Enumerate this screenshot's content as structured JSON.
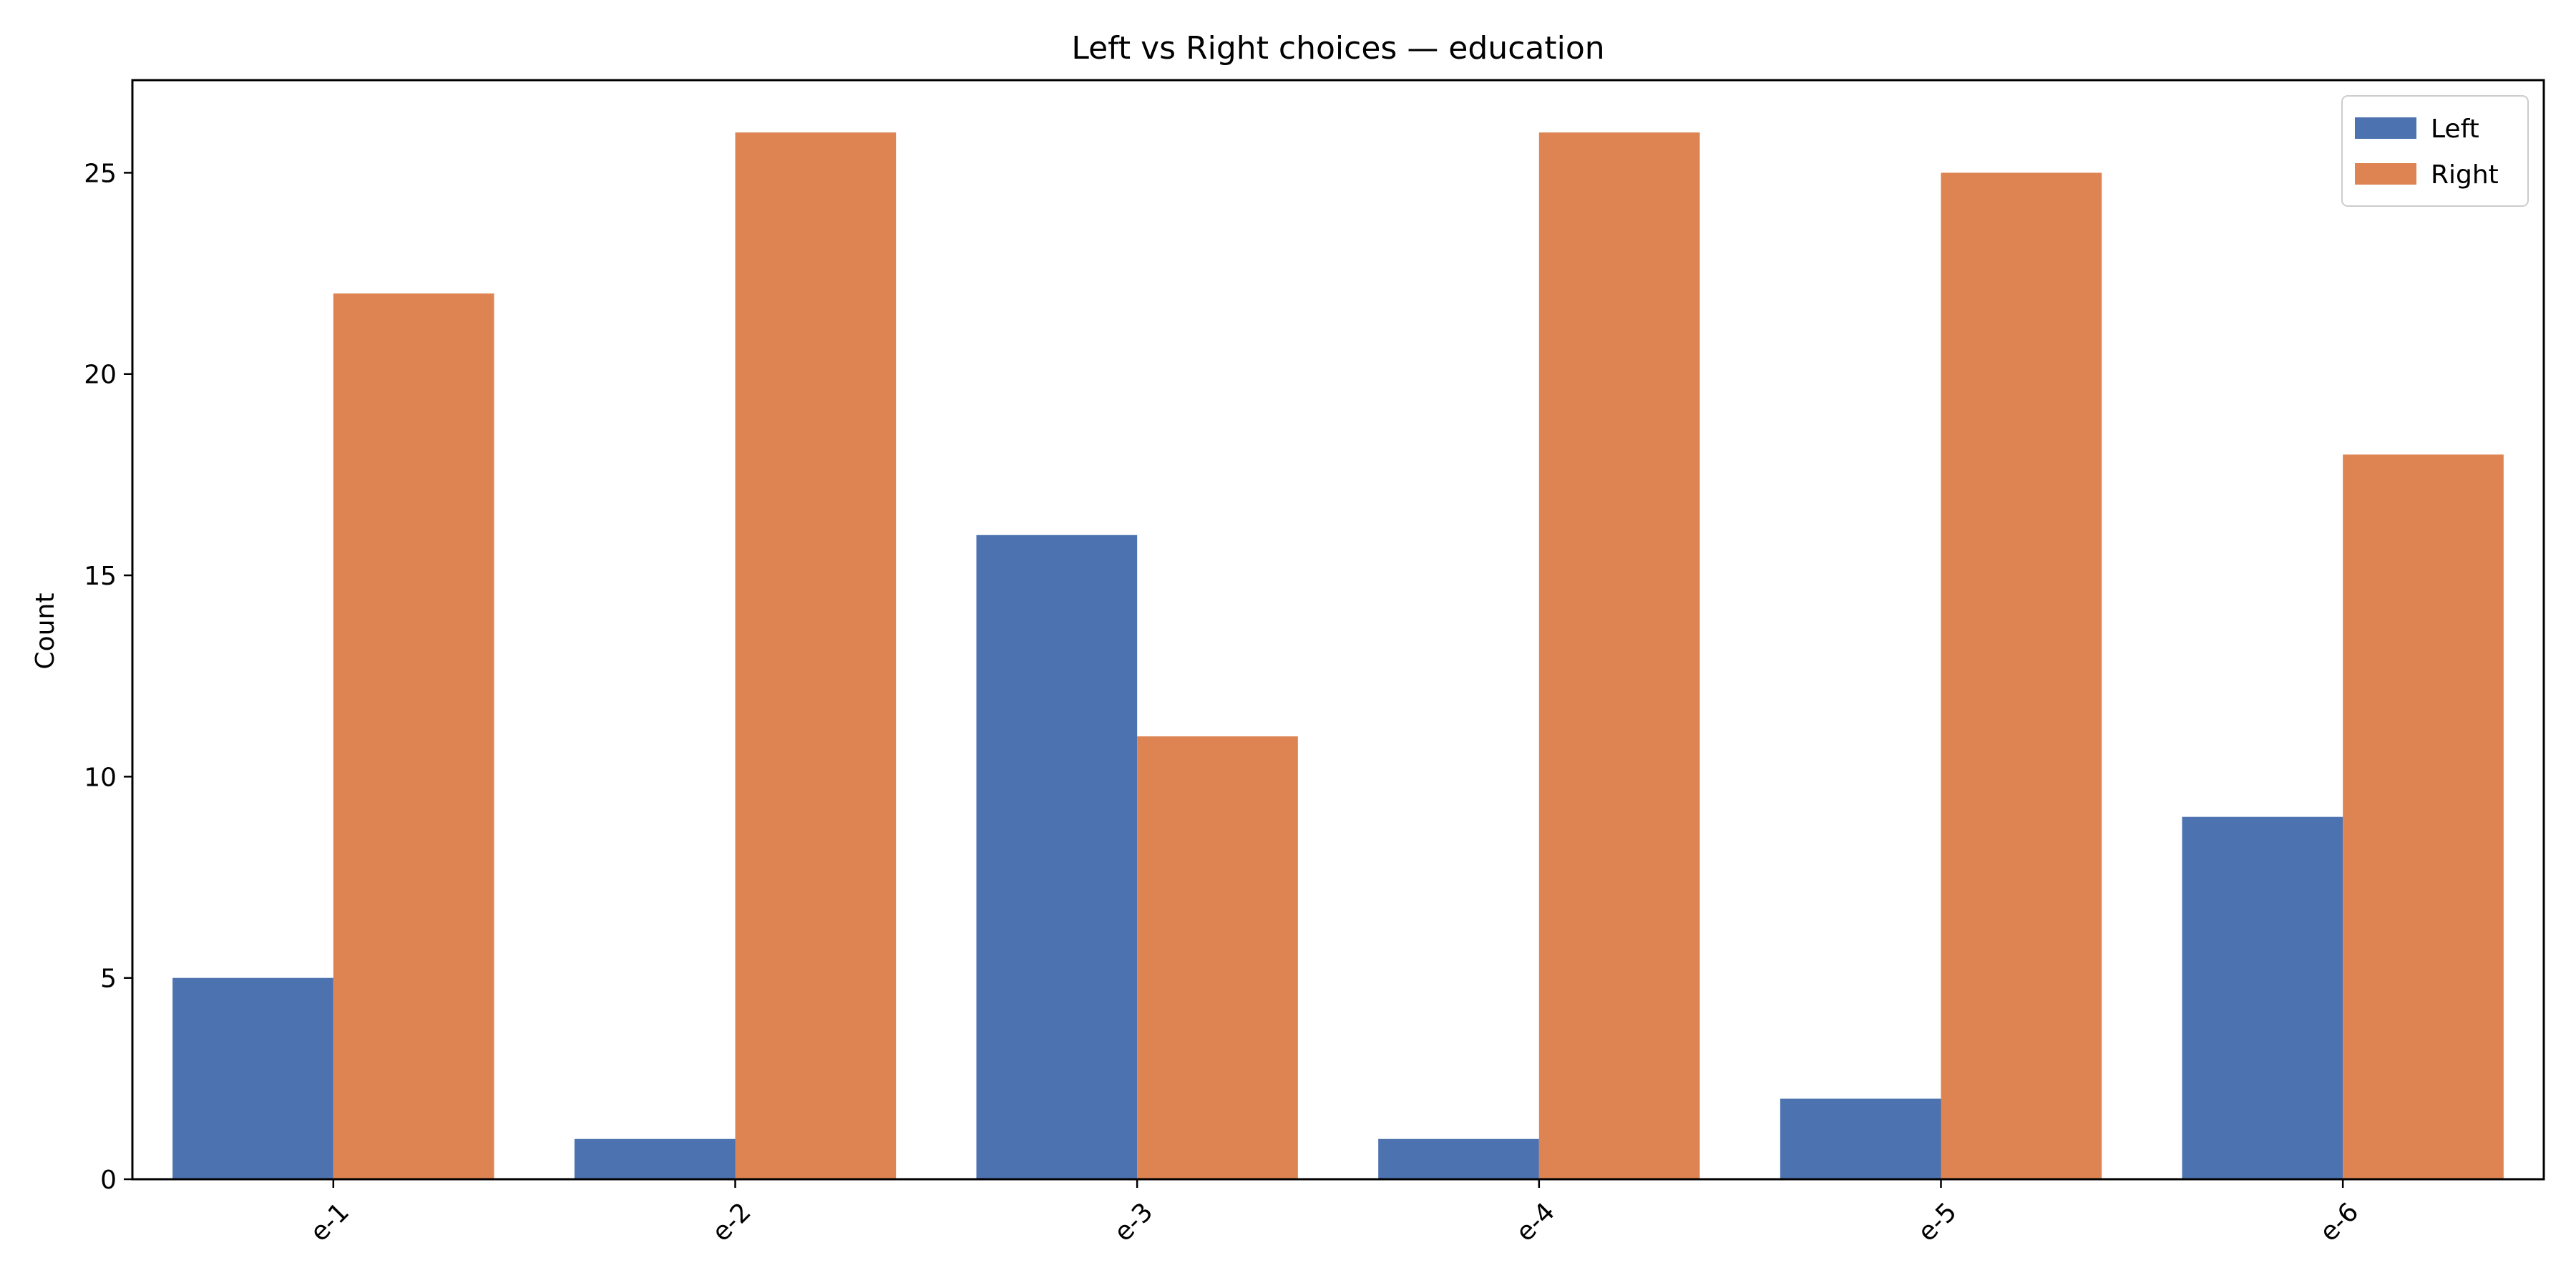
{
  "chart_data": {
    "type": "bar",
    "title": "Left vs Right choices — education",
    "xlabel": "",
    "ylabel": "Count",
    "categories": [
      "e-1",
      "e-2",
      "e-3",
      "e-4",
      "e-5",
      "e-6"
    ],
    "series": [
      {
        "name": "Left",
        "color": "#4c72b0",
        "values": [
          5,
          1,
          16,
          1,
          2,
          9
        ]
      },
      {
        "name": "Right",
        "color": "#dd8452",
        "values": [
          22,
          26,
          11,
          26,
          25,
          18
        ]
      }
    ],
    "ylim": [
      0,
      27.3
    ],
    "yticks": [
      0,
      5,
      10,
      15,
      20,
      25
    ],
    "grid": false,
    "legend_position": "top-right"
  }
}
